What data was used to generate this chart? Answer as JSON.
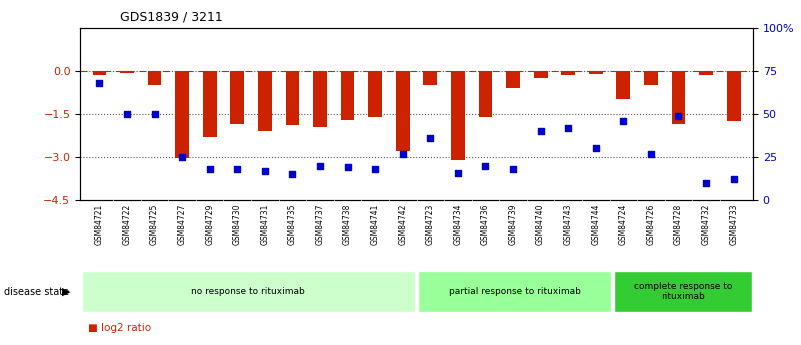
{
  "title": "GDS1839 / 3211",
  "samples": [
    "GSM84721",
    "GSM84722",
    "GSM84725",
    "GSM84727",
    "GSM84729",
    "GSM84730",
    "GSM84731",
    "GSM84735",
    "GSM84737",
    "GSM84738",
    "GSM84741",
    "GSM84742",
    "GSM84723",
    "GSM84734",
    "GSM84736",
    "GSM84739",
    "GSM84740",
    "GSM84743",
    "GSM84744",
    "GSM84724",
    "GSM84726",
    "GSM84728",
    "GSM84732",
    "GSM84733"
  ],
  "log2_ratio": [
    -0.15,
    -0.08,
    -0.5,
    -3.05,
    -2.3,
    -1.85,
    -2.1,
    -1.9,
    -1.95,
    -1.7,
    -1.6,
    -2.8,
    -0.5,
    -3.1,
    -1.6,
    -0.6,
    -0.25,
    -0.15,
    -0.1,
    -1.0,
    -0.5,
    -1.85,
    -0.15,
    -1.75
  ],
  "percentile": [
    68,
    50,
    50,
    25,
    18,
    18,
    17,
    15,
    20,
    19,
    18,
    27,
    36,
    16,
    20,
    18,
    40,
    42,
    30,
    46,
    27,
    49,
    10,
    12
  ],
  "groups": [
    {
      "label": "no response to rituximab",
      "start": 0,
      "end": 12,
      "color": "#ccffcc"
    },
    {
      "label": "partial response to rituximab",
      "start": 12,
      "end": 19,
      "color": "#99ff99"
    },
    {
      "label": "complete response to\nrituximab",
      "start": 19,
      "end": 24,
      "color": "#33cc33"
    }
  ],
  "ylim_left": [
    -4.5,
    1.5
  ],
  "ylim_right": [
    0,
    100
  ],
  "bar_color": "#cc2200",
  "dot_color": "#0000cc",
  "hline_color": "#cc2200",
  "dotline_color": "#555555",
  "background_color": "#ffffff",
  "yticks_left": [
    -4.5,
    -3.0,
    -1.5,
    0
  ],
  "yticks_right": [
    0,
    25,
    50,
    75,
    100
  ],
  "ytick_labels_right": [
    "0",
    "25",
    "50",
    "75",
    "100%"
  ]
}
